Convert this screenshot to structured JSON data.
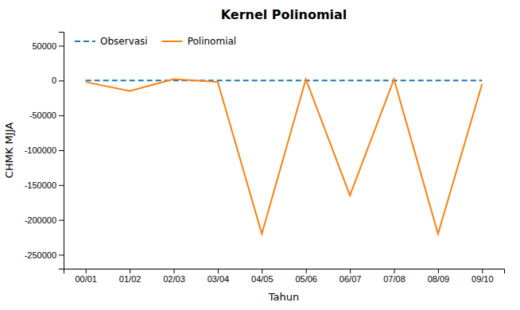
{
  "chart_data": {
    "type": "line",
    "title": "Kernel Polinomial",
    "x_label": "Tahun",
    "y_label": "CHMK MJJA",
    "categories": [
      "00/01",
      "01/02",
      "02/03",
      "03/04",
      "04/05",
      "05/06",
      "06/07",
      "07/08",
      "08/09",
      "09/10"
    ],
    "series": [
      {
        "name": "Observasi",
        "line_style": "dashed",
        "values": [
          0,
          0,
          0,
          0,
          0,
          0,
          0,
          0,
          0,
          0
        ]
      },
      {
        "name": "Polinomial",
        "line_style": "solid",
        "values": [
          -2000,
          -15000,
          2000,
          -2000,
          -220000,
          2000,
          -165000,
          2000,
          -220000,
          -5000
        ]
      }
    ],
    "ylim": [
      -270000,
      70000
    ],
    "yticks": [
      50000,
      0,
      -50000,
      -100000,
      -150000,
      -200000,
      -250000
    ],
    "grid": false,
    "legend": "upper left"
  }
}
